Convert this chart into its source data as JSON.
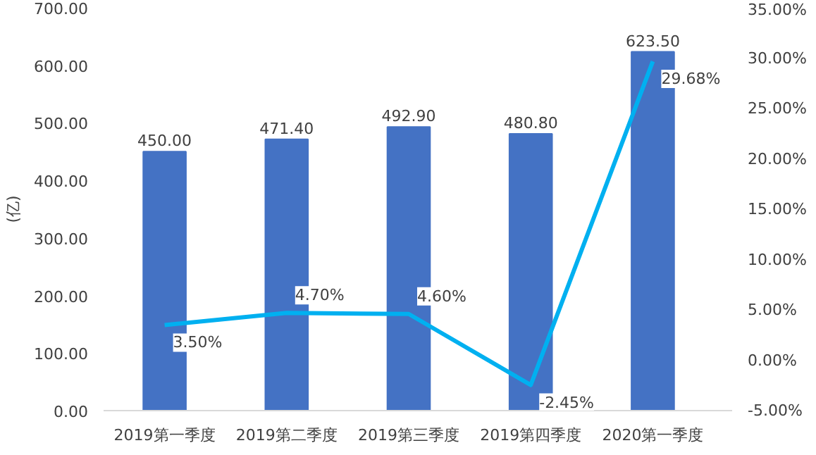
{
  "chart_data": {
    "type": "bar",
    "ylabel": "(亿)",
    "categories": [
      "2019第一季度",
      "2019第二季度",
      "2019第三季度",
      "2019第四季度",
      "2020第一季度"
    ],
    "series": [
      {
        "color": "#4472c4",
        "values": [
          450.0,
          471.4,
          492.9,
          480.8,
          623.5
        ],
        "value_labels": [
          "450.00",
          "471.40",
          "492.90",
          "480.80",
          "623.50"
        ]
      },
      {
        "type": "line",
        "axis": "y2",
        "color": "#00b0f0",
        "values": [
          3.5,
          4.7,
          4.6,
          -2.45,
          29.68
        ],
        "value_labels": [
          "3.50%",
          "4.70%",
          "4.60%",
          "-2.45%",
          "29.68%"
        ]
      }
    ],
    "ylim": [
      0,
      700
    ],
    "yticks": [
      {
        "value": 0,
        "label": "0.00"
      },
      {
        "value": 100,
        "label": "100.00"
      },
      {
        "value": 200,
        "label": "200.00"
      },
      {
        "value": 300,
        "label": "300.00"
      },
      {
        "value": 400,
        "label": "400.00"
      },
      {
        "value": 500,
        "label": "500.00"
      },
      {
        "value": 600,
        "label": "600.00"
      },
      {
        "value": 700,
        "label": "700.00"
      }
    ],
    "y2lim": [
      -5,
      35
    ],
    "y2ticks": [
      {
        "value": -5,
        "label": "-5.00%"
      },
      {
        "value": 0,
        "label": "0.00%"
      },
      {
        "value": 5,
        "label": "5.00%"
      },
      {
        "value": 10,
        "label": "10.00%"
      },
      {
        "value": 15,
        "label": "15.00%"
      },
      {
        "value": 20,
        "label": "20.00%"
      },
      {
        "value": 25,
        "label": "25.00%"
      },
      {
        "value": 30,
        "label": "30.00%"
      },
      {
        "value": 35,
        "label": "35.00%"
      }
    ],
    "grid": false
  }
}
